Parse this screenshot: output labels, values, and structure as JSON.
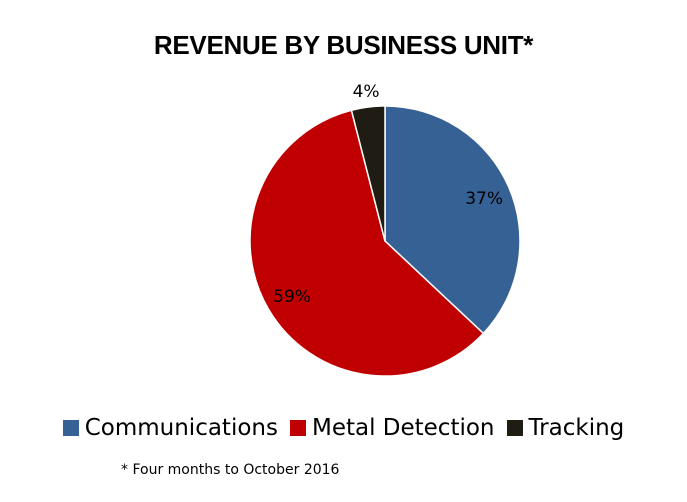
{
  "chart_data": {
    "type": "pie",
    "title": "REVENUE BY BUSINESS UNIT*",
    "categories": [
      "Communications",
      "Metal Detection",
      "Tracking"
    ],
    "values": [
      37,
      59,
      4
    ],
    "labels": [
      "37%",
      "59%",
      "4%"
    ],
    "colors": [
      "#366194",
      "#c00000",
      "#1f1c14"
    ],
    "legend_position": "bottom",
    "footnote": "* Four months to October 2016"
  }
}
